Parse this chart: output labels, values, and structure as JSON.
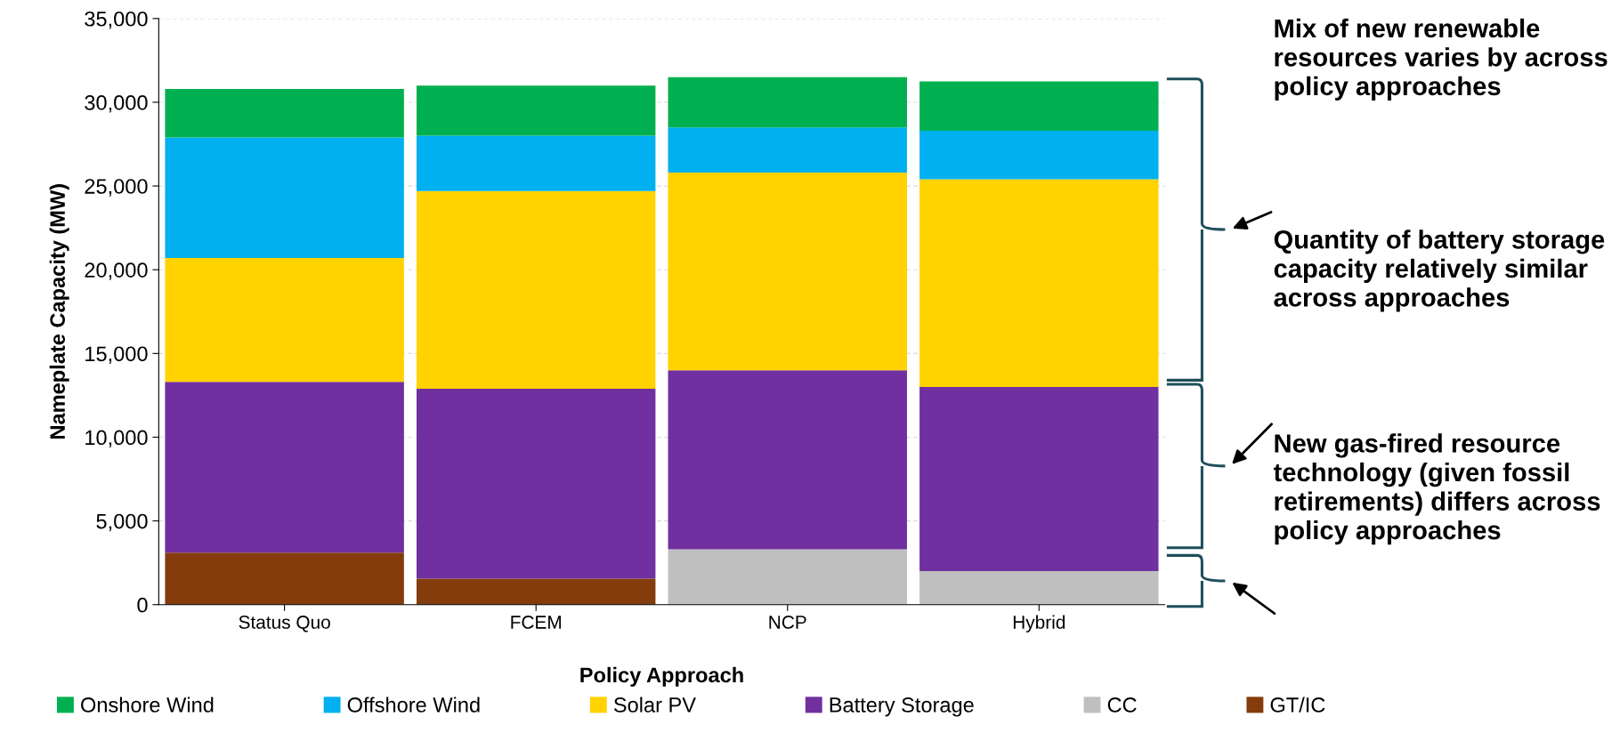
{
  "chart_data": {
    "type": "bar",
    "stacked": true,
    "xlabel": "Policy Approach",
    "ylabel": "Nameplate Capacity (MW)",
    "categories": [
      "Status Quo",
      "FCEM",
      "NCP",
      "Hybrid"
    ],
    "series": [
      {
        "name": "GT/IC",
        "color": "#843c0c",
        "values": [
          3100,
          1550,
          0,
          0
        ]
      },
      {
        "name": "CC",
        "color": "#bfbfbf",
        "values": [
          0,
          0,
          3300,
          2000
        ]
      },
      {
        "name": "Battery Storage",
        "color": "#7030a0",
        "values": [
          10200,
          11350,
          10700,
          11000
        ]
      },
      {
        "name": "Solar PV",
        "color": "#ffd200",
        "values": [
          7400,
          11800,
          11800,
          12400
        ]
      },
      {
        "name": "Offshore Wind",
        "color": "#00b0f0",
        "values": [
          7200,
          3300,
          2700,
          2900
        ]
      },
      {
        "name": "Onshore Wind",
        "color": "#00b050",
        "values": [
          2900,
          3000,
          3000,
          2950
        ]
      }
    ],
    "ylim": [
      0,
      35000
    ],
    "yticks": [
      {
        "value": 0,
        "label": "0"
      },
      {
        "value": 5000,
        "label": "5,000"
      },
      {
        "value": 10000,
        "label": "10,000"
      },
      {
        "value": 15000,
        "label": "15,000"
      },
      {
        "value": 20000,
        "label": "20,000"
      },
      {
        "value": 25000,
        "label": "25,000"
      },
      {
        "value": 30000,
        "label": "30,000"
      },
      {
        "value": 35000,
        "label": "35,000"
      }
    ],
    "grid": "y",
    "legend": "bottom",
    "annotations": [
      "Mix of new renewable resources varies by across policy approaches",
      "Quantity of battery storage capacity relatively similar across approaches",
      "New gas-fired resource technology (given fossil retirements) differs across policy approaches"
    ]
  }
}
